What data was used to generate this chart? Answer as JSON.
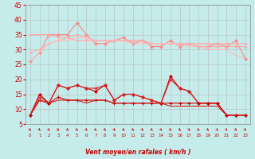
{
  "x": [
    0,
    1,
    2,
    3,
    4,
    5,
    6,
    7,
    8,
    9,
    10,
    11,
    12,
    13,
    14,
    15,
    16,
    17,
    18,
    19,
    20,
    21,
    22,
    23
  ],
  "line1": [
    26,
    29,
    35,
    35,
    35,
    39,
    35,
    32,
    32,
    33,
    34,
    32,
    33,
    31,
    31,
    33,
    31,
    32,
    31,
    31,
    32,
    31,
    33,
    27
  ],
  "line2": [
    35,
    35,
    35,
    34,
    34,
    33,
    33,
    33,
    33,
    33,
    33,
    33,
    33,
    32,
    32,
    32,
    32,
    32,
    32,
    32,
    32,
    32,
    32,
    32
  ],
  "line3": [
    29,
    30,
    32,
    33,
    34,
    35,
    34,
    33,
    33,
    33,
    33,
    33,
    33,
    32,
    32,
    32,
    32,
    32,
    31,
    31,
    31,
    31,
    31,
    31
  ],
  "line4": [
    26,
    29,
    32,
    33,
    33,
    34,
    34,
    33,
    33,
    33,
    33,
    32,
    32,
    32,
    32,
    32,
    32,
    31,
    31,
    30,
    30,
    30,
    28,
    27
  ],
  "line5": [
    8,
    15,
    12,
    18,
    17,
    18,
    17,
    16,
    18,
    13,
    15,
    15,
    14,
    13,
    12,
    21,
    17,
    16,
    12,
    12,
    12,
    8,
    8,
    8
  ],
  "line6": [
    8,
    14,
    12,
    18,
    17,
    18,
    17,
    17,
    18,
    13,
    15,
    15,
    14,
    13,
    12,
    20,
    17,
    16,
    12,
    12,
    12,
    8,
    8,
    8
  ],
  "line7": [
    8,
    13,
    12,
    14,
    13,
    13,
    13,
    13,
    13,
    12,
    12,
    12,
    12,
    12,
    12,
    12,
    12,
    12,
    12,
    12,
    12,
    8,
    8,
    8
  ],
  "line8": [
    8,
    13,
    12,
    13,
    13,
    13,
    12,
    13,
    13,
    12,
    12,
    12,
    12,
    12,
    12,
    11,
    11,
    11,
    11,
    11,
    11,
    8,
    8,
    8
  ],
  "background_color": "#c5eceb",
  "grid_color": "#b0b0b0",
  "xlabel": "Vent moyen/en rafales ( km/h )",
  "xlabel_color": "#cc0000",
  "tick_color": "#cc0000",
  "arrow_color": "#cc0000",
  "ylim": [
    5,
    45
  ],
  "yticks": [
    5,
    10,
    15,
    20,
    25,
    30,
    35,
    40,
    45
  ],
  "xlim": [
    -0.5,
    23.5
  ]
}
